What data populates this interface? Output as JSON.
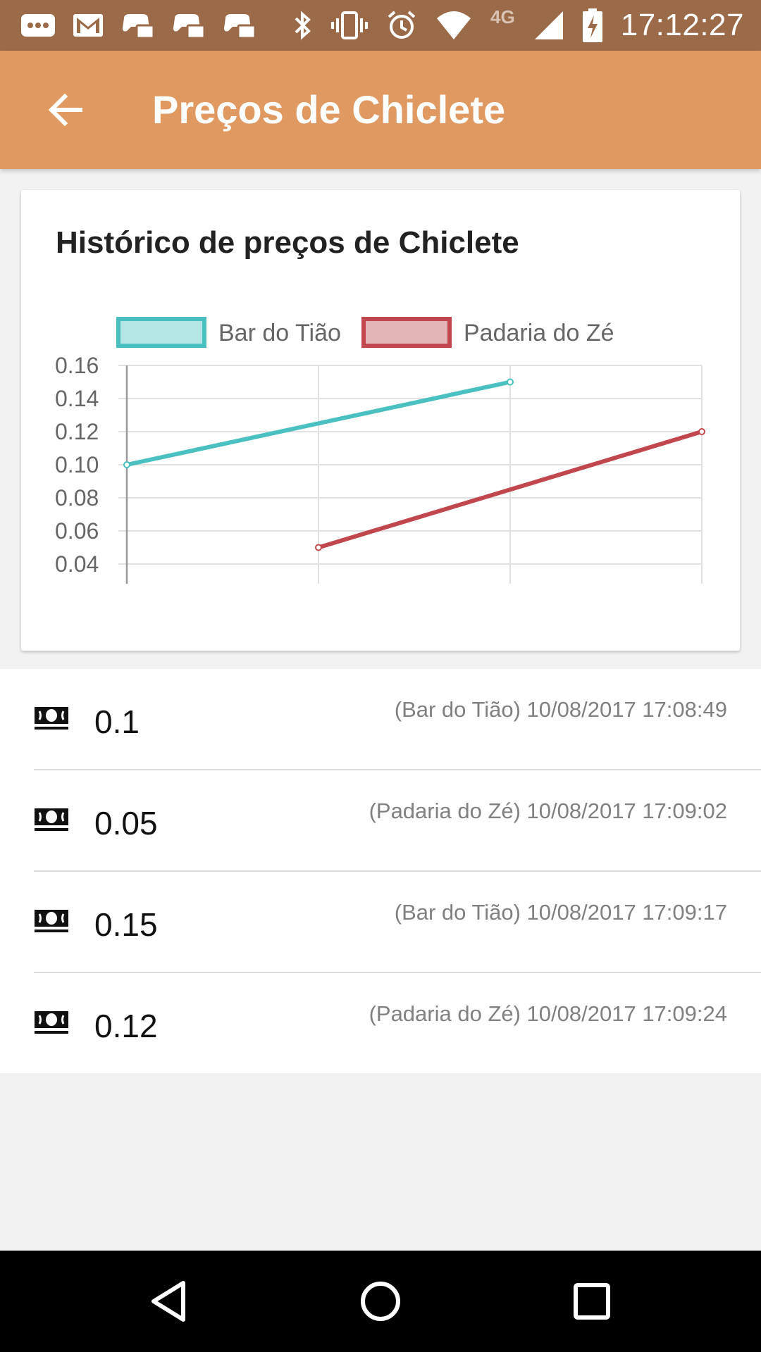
{
  "status_bar": {
    "time": "17:12:27",
    "network": "4G",
    "notification_icons": [
      "message-icon",
      "gmail-icon",
      "game-controller-icon",
      "game-controller-icon",
      "game-controller-icon"
    ],
    "system_icons": [
      "bluetooth-icon",
      "vibrate-icon",
      "alarm-icon",
      "wifi-icon",
      "signal-icon",
      "battery-charging-icon"
    ]
  },
  "app_bar": {
    "title": "Preços de Chiclete",
    "back_icon": "arrow-back-icon"
  },
  "card": {
    "title": "Histórico de preços de Chiclete"
  },
  "chart_data": {
    "type": "line",
    "title": "Histórico de preços de Chiclete",
    "legend_position": "top",
    "grid": true,
    "x_points": 4,
    "ylim": [
      0.04,
      0.16
    ],
    "y_ticks": [
      "0.16",
      "0.14",
      "0.12",
      "0.10",
      "0.08",
      "0.06",
      "0.04"
    ],
    "series": [
      {
        "name": "Bar do Tião",
        "color": "#4bc0c0",
        "fill": "#b5e6e6",
        "points": [
          [
            0,
            0.1
          ],
          [
            2,
            0.15
          ]
        ]
      },
      {
        "name": "Padaria do Zé",
        "color": "#c0474d",
        "fill": "#e6b5b8",
        "points": [
          [
            1,
            0.05
          ],
          [
            3,
            0.12
          ]
        ]
      }
    ]
  },
  "prices": [
    {
      "value": "0.1",
      "meta": "(Bar do Tião) 10/08/2017 17:08:49",
      "icon": "cash-icon"
    },
    {
      "value": "0.05",
      "meta": "(Padaria do Zé) 10/08/2017 17:09:02",
      "icon": "cash-icon"
    },
    {
      "value": "0.15",
      "meta": "(Bar do Tião) 10/08/2017 17:09:17",
      "icon": "cash-icon"
    },
    {
      "value": "0.12",
      "meta": "(Padaria do Zé) 10/08/2017 17:09:24",
      "icon": "cash-icon"
    }
  ],
  "nav_bar": {
    "buttons": [
      "back-triangle-icon",
      "home-circle-icon",
      "recents-square-icon"
    ]
  }
}
